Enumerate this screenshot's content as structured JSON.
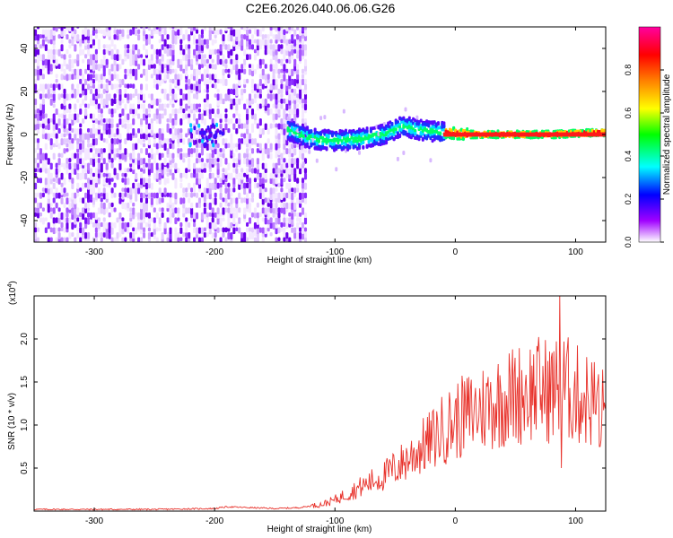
{
  "figure_title": "C2E6.2026.040.06.06.G26",
  "colors": {
    "snr_line": "#e8322b",
    "background": "#ffffff",
    "axis": "#000000"
  },
  "chart_data": [
    {
      "type": "heatmap",
      "name": "spectrogram",
      "title": "C2E6.2026.040.06.06.G26",
      "xlabel": "Height of straight line (km)",
      "ylabel": "Frequency (Hz)",
      "xlim": [
        -350,
        125
      ],
      "ylim": [
        -50,
        50
      ],
      "xticks": [
        -300,
        -200,
        -100,
        0,
        100
      ],
      "yticks": [
        -40,
        -20,
        0,
        20,
        40
      ],
      "colorbar": {
        "label": "Normalized spectral amplitude",
        "range": [
          0.0,
          1.0
        ],
        "ticks": [
          0.0,
          0.2,
          0.4,
          0.6,
          0.8
        ],
        "colormap": [
          "#ffffff",
          "#a000ff",
          "#0000ff",
          "#00ffff",
          "#00ff00",
          "#ffff00",
          "#ff8000",
          "#ff0000",
          "#ff00a0"
        ]
      },
      "features": {
        "noise_region_km": [
          -350,
          -125
        ],
        "signal_onset_km": -140,
        "signal_frequency_track_hz": [
          [
            -210,
            1
          ],
          [
            -140,
            2
          ],
          [
            -120,
            -2
          ],
          [
            -100,
            -3
          ],
          [
            -80,
            -2
          ],
          [
            -60,
            0
          ],
          [
            -45,
            4
          ],
          [
            -30,
            2
          ],
          [
            -10,
            1
          ],
          [
            0,
            0.5
          ],
          [
            10,
            0
          ],
          [
            50,
            0
          ],
          [
            80,
            0
          ],
          [
            100,
            0.5
          ],
          [
            125,
            1
          ]
        ],
        "peak_band_km": [
          -10,
          125
        ]
      }
    },
    {
      "type": "line",
      "name": "snr",
      "xlabel": "Height of straight line (km)",
      "ylabel": "SNR (10 * v/v)",
      "y_multiplier_label": "(x10",
      "y_multiplier_exponent": "4",
      "y_multiplier_close": ")",
      "xlim": [
        -350,
        125
      ],
      "ylim": [
        0,
        2.5
      ],
      "xticks": [
        -300,
        -200,
        -100,
        0,
        100
      ],
      "yticks": [
        0.5,
        1.0,
        1.5,
        2.0
      ],
      "ytick_labels": [
        "0.5",
        "1.0",
        "1.5",
        "2.0"
      ],
      "series": [
        {
          "name": "SNR",
          "x": [
            -350,
            -300,
            -250,
            -200,
            -190,
            -150,
            -130,
            -110,
            -100,
            -90,
            -80,
            -70,
            -60,
            -50,
            -40,
            -30,
            -20,
            -10,
            0,
            10,
            20,
            30,
            40,
            50,
            60,
            70,
            80,
            90,
            100,
            110,
            120,
            125
          ],
          "y": [
            0.02,
            0.02,
            0.02,
            0.03,
            0.05,
            0.03,
            0.04,
            0.08,
            0.13,
            0.2,
            0.27,
            0.34,
            0.4,
            0.5,
            0.6,
            0.72,
            0.82,
            0.95,
            1.05,
            1.12,
            1.18,
            1.25,
            1.3,
            1.35,
            1.4,
            1.42,
            1.4,
            1.45,
            1.35,
            1.3,
            1.25,
            1.1
          ]
        }
      ],
      "spikes": [
        [
          87,
          2.5
        ],
        [
          88,
          0.5
        ],
        [
          120,
          0.75
        ],
        [
          125,
          1.0
        ]
      ]
    }
  ]
}
